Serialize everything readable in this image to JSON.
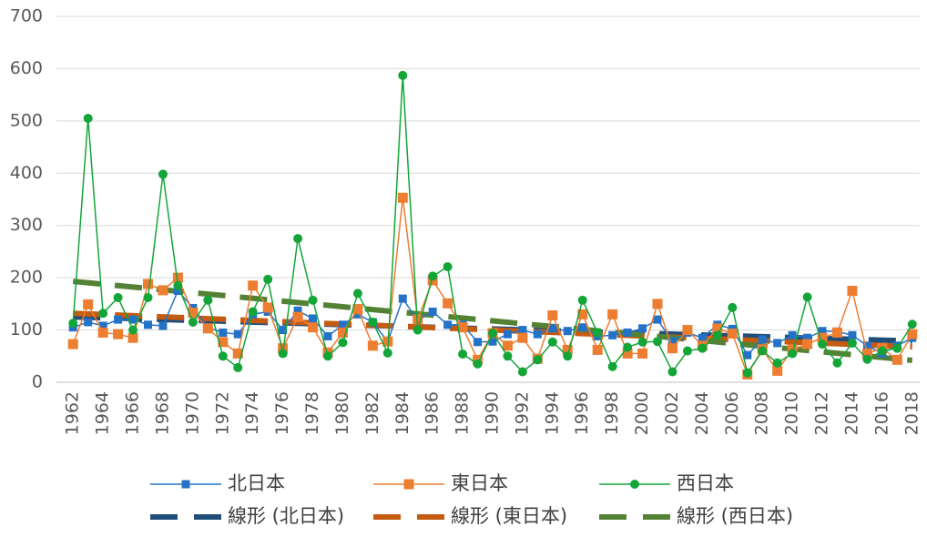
{
  "chart_data": {
    "type": "line",
    "x": [
      1962,
      1963,
      1964,
      1965,
      1966,
      1967,
      1968,
      1969,
      1970,
      1971,
      1972,
      1973,
      1974,
      1975,
      1976,
      1977,
      1978,
      1979,
      1980,
      1981,
      1982,
      1983,
      1984,
      1985,
      1986,
      1987,
      1988,
      1989,
      1990,
      1991,
      1992,
      1993,
      1994,
      1995,
      1996,
      1997,
      1998,
      1999,
      2000,
      2001,
      2002,
      2003,
      2004,
      2005,
      2006,
      2007,
      2008,
      2009,
      2010,
      2011,
      2012,
      2013,
      2014,
      2015,
      2016,
      2017,
      2018
    ],
    "xlim": [
      1961.5,
      2018.5
    ],
    "xticks": [
      1962,
      1964,
      1966,
      1968,
      1970,
      1972,
      1974,
      1976,
      1978,
      1980,
      1982,
      1984,
      1986,
      1988,
      1990,
      1992,
      1994,
      1996,
      1998,
      2000,
      2002,
      2004,
      2006,
      2008,
      2010,
      2012,
      2014,
      2016,
      2018
    ],
    "ylim": [
      0,
      700
    ],
    "yticks": [
      0,
      100,
      200,
      300,
      400,
      500,
      600,
      700
    ],
    "grid": true,
    "series": [
      {
        "name": "北日本",
        "color": "#2472c8",
        "marker": "square",
        "values": [
          105,
          115,
          108,
          120,
          120,
          110,
          108,
          175,
          142,
          105,
          95,
          92,
          130,
          135,
          100,
          137,
          122,
          88,
          110,
          130,
          115,
          78,
          160,
          118,
          135,
          110,
          110,
          77,
          78,
          92,
          100,
          92,
          103,
          98,
          105,
          88,
          90,
          95,
          103,
          120,
          78,
          95,
          85,
          110,
          102,
          52,
          82,
          75,
          90,
          85,
          98,
          97,
          90,
          70,
          55,
          70,
          85
        ]
      },
      {
        "name": "東日本",
        "color": "#ed7d31",
        "marker": "square",
        "values": [
          73,
          149,
          95,
          92,
          85,
          188,
          176,
          200,
          133,
          103,
          77,
          55,
          185,
          143,
          65,
          125,
          105,
          57,
          95,
          140,
          70,
          78,
          353,
          120,
          195,
          151,
          105,
          43,
          94,
          70,
          85,
          45,
          128,
          62,
          130,
          62,
          130,
          55,
          55,
          150,
          65,
          100,
          70,
          103,
          93,
          15,
          63,
          22,
          63,
          73,
          85,
          95,
          175,
          55,
          65,
          43,
          92
        ]
      },
      {
        "name": "西日本",
        "color": "#13a538",
        "marker": "circle",
        "values": [
          113,
          505,
          132,
          162,
          100,
          162,
          398,
          185,
          115,
          157,
          50,
          28,
          135,
          197,
          55,
          275,
          157,
          50,
          76,
          170,
          115,
          56,
          587,
          100,
          203,
          221,
          54,
          35,
          94,
          50,
          20,
          43,
          77,
          50,
          157,
          95,
          30,
          67,
          77,
          78,
          20,
          60,
          65,
          90,
          143,
          18,
          60,
          37,
          55,
          163,
          73,
          37,
          75,
          44,
          60,
          65,
          111
        ]
      },
      {
        "name": "線形 (北日本)",
        "color": "#1f4e79",
        "dashed": true,
        "x": [
          1962,
          2018
        ],
        "values": [
          125,
          79
        ]
      },
      {
        "name": "線形 (東日本)",
        "color": "#c55a11",
        "dashed": true,
        "x": [
          1962,
          2018
        ],
        "values": [
          132,
          68
        ]
      },
      {
        "name": "線形 (西日本)",
        "color": "#548235",
        "dashed": true,
        "x": [
          1962,
          2018
        ],
        "values": [
          193,
          42
        ]
      }
    ]
  }
}
